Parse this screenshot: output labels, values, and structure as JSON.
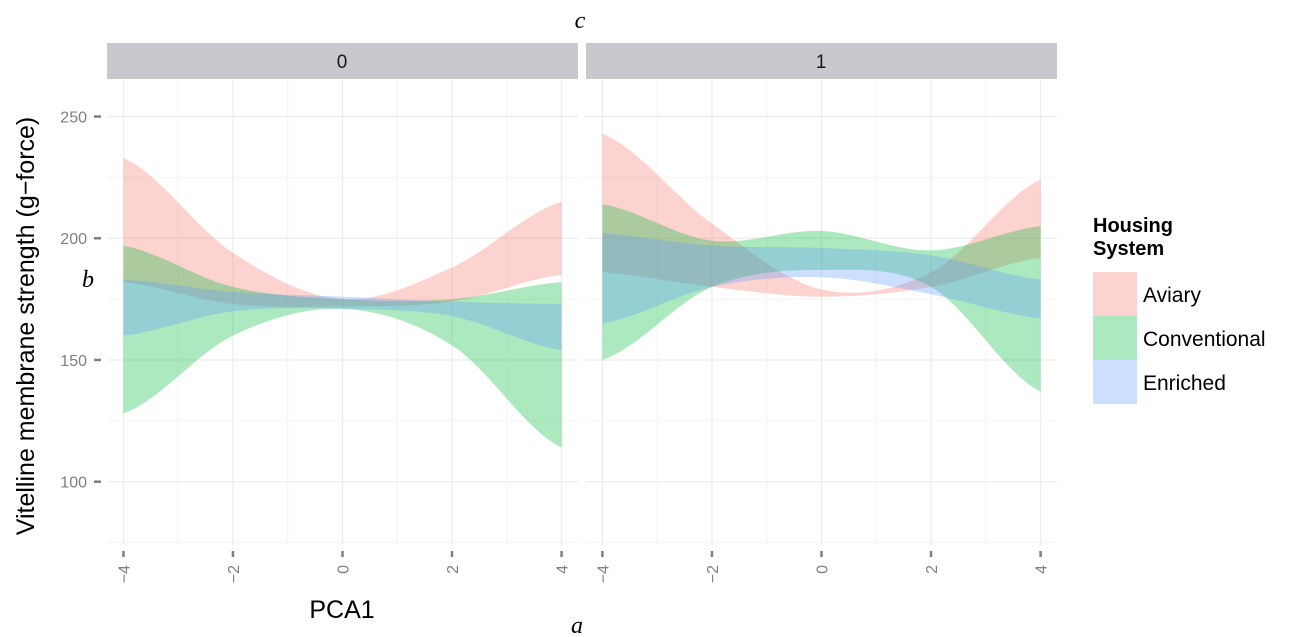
{
  "chart_data": {
    "type": "area",
    "facet_title": "c",
    "panels": [
      "0",
      "1"
    ],
    "xlabel": "PCA1",
    "ylabel": "Vitelline membrane strength (g−force)",
    "x_ticks": [
      "−4",
      "−2",
      "0",
      "2",
      "4"
    ],
    "x_tick_values": [
      -4,
      -2,
      0,
      2,
      4
    ],
    "y_ticks": [
      "100",
      "150",
      "200",
      "250"
    ],
    "y_tick_values": [
      100,
      150,
      200,
      250
    ],
    "xlim": [
      -4.3,
      4.3
    ],
    "ylim": [
      74,
      265
    ],
    "annotations": {
      "x_corner": "a",
      "y_corner": "b"
    },
    "legend": {
      "title_line1": "Housing",
      "title_line2": "System",
      "position": "right",
      "items": [
        "Aviary",
        "Conventional",
        "Enriched"
      ]
    },
    "colors": {
      "Aviary": "#f8766d",
      "Conventional": "#00ba38",
      "Enriched": "#619cff",
      "strip": "#c8c8cf",
      "grid": "#eeeeee"
    },
    "series": [
      {
        "panel": "0",
        "name": "Aviary",
        "x": [
          -4,
          -2,
          0,
          2,
          4
        ],
        "lower": [
          182,
          173,
          172,
          174,
          185
        ],
        "upper": [
          233,
          194,
          175,
          188,
          215
        ]
      },
      {
        "panel": "0",
        "name": "Conventional",
        "x": [
          -4,
          -2,
          0,
          2,
          4
        ],
        "lower": [
          128,
          160,
          171,
          156,
          114
        ],
        "upper": [
          197,
          180,
          175,
          175,
          182
        ]
      },
      {
        "panel": "0",
        "name": "Enriched",
        "x": [
          -4,
          -2,
          0,
          2,
          4
        ],
        "lower": [
          160,
          170,
          171,
          168,
          154
        ],
        "upper": [
          183,
          178,
          176,
          174,
          173
        ]
      },
      {
        "panel": "1",
        "name": "Aviary",
        "x": [
          -4,
          -2,
          0,
          2,
          4
        ],
        "lower": [
          186,
          180,
          176,
          180,
          192
        ],
        "upper": [
          243,
          206,
          179,
          186,
          224
        ]
      },
      {
        "panel": "1",
        "name": "Conventional",
        "x": [
          -4,
          -2,
          0,
          2,
          4
        ],
        "lower": [
          150,
          180,
          187,
          180,
          137
        ],
        "upper": [
          214,
          199,
          203,
          195,
          205
        ]
      },
      {
        "panel": "1",
        "name": "Enriched",
        "x": [
          -4,
          -2,
          0,
          2,
          4
        ],
        "lower": [
          165,
          180,
          184,
          177,
          167
        ],
        "upper": [
          202,
          197,
          196,
          193,
          183
        ]
      }
    ]
  }
}
